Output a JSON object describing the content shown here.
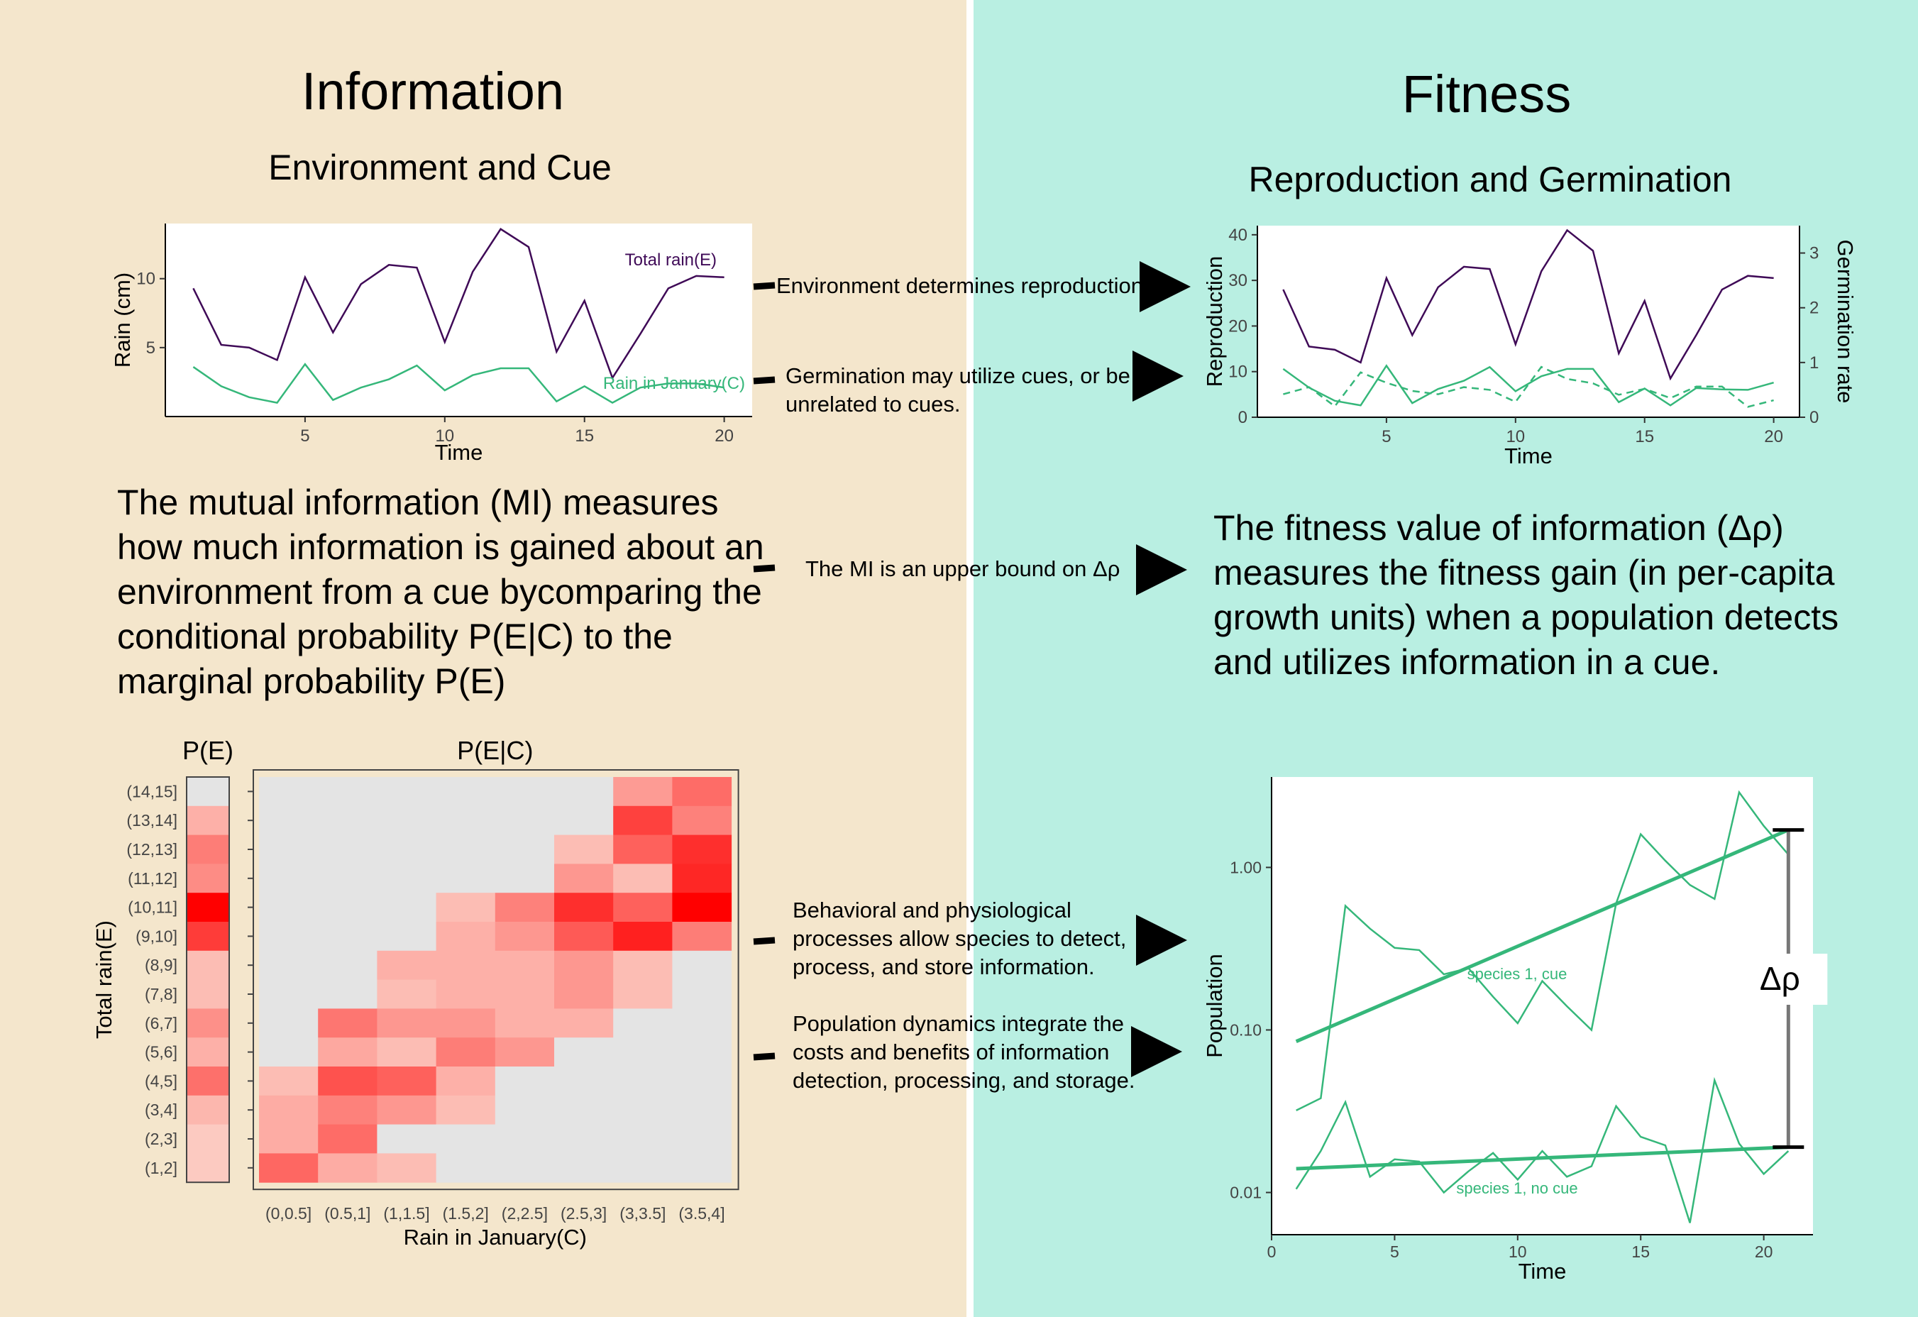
{
  "left_title": "Information",
  "left_subtitle": "Environment and Cue",
  "right_title": "Fitness",
  "right_subtitle": "Reproduction and Germination",
  "mi_text": "The mutual information (MI) measures how much information is gained about an environment from a cue bycomparing the conditional probability P(E|C) to the marginal probability P(E)",
  "fitness_text": "The fitness value of information (Δρ) measures the fitness gain (in per-capita growth units) when a population detects and utilizes information in a cue.",
  "arrows": {
    "a1": "Environment determines reproduction",
    "a2": "Germination may utilize cues, or be unrelated to cues.",
    "a3": "The MI is an upper bound on Δρ",
    "a4": "Behavioral and physiological processes allow species to detect, process, and store information.",
    "a5": "Population dynamics integrate the costs and benefits of information detection, processing, and storage."
  },
  "colors": {
    "left_bg": "#f4e6cc",
    "right_bg": "#b9efe2",
    "purple": "#3f0a57",
    "green": "#35b77a"
  },
  "chart_data": [
    {
      "type": "line",
      "id": "rain",
      "xlabel": "Time",
      "ylabel": "Rain (cm)",
      "xticks": [
        5,
        10,
        15,
        20
      ],
      "yticks": [
        5,
        10
      ],
      "xlim": [
        0,
        21
      ],
      "ylim": [
        0,
        14
      ],
      "x": [
        1,
        2,
        3,
        4,
        5,
        6,
        7,
        8,
        9,
        10,
        11,
        12,
        13,
        14,
        15,
        16,
        17,
        18,
        19,
        20
      ],
      "series": [
        {
          "name": "Total rain(E)",
          "color": "#3f0a57",
          "values": [
            9.3,
            5.2,
            5.0,
            4.1,
            10.1,
            6.1,
            9.6,
            11.0,
            10.8,
            5.4,
            10.5,
            13.6,
            12.3,
            4.7,
            8.4,
            2.8,
            6.0,
            9.3,
            10.2,
            10.1
          ]
        },
        {
          "name": "Rain in January(C)",
          "color": "#35b77a",
          "values": [
            3.6,
            2.2,
            1.4,
            1.0,
            3.8,
            1.2,
            2.1,
            2.7,
            3.7,
            1.9,
            3.0,
            3.5,
            3.5,
            1.1,
            2.2,
            1.0,
            2.1,
            2.4,
            2.4,
            2.1
          ]
        }
      ]
    },
    {
      "type": "line",
      "id": "repro",
      "xlabel": "Time",
      "ylabel": "Reproduction",
      "y2label": "Germination rate",
      "xticks": [
        5,
        10,
        15,
        20
      ],
      "yticks": [
        0,
        10,
        20,
        30,
        40
      ],
      "y2ticks": [
        0,
        1,
        2,
        3
      ],
      "xlim": [
        0,
        21
      ],
      "ylim": [
        0,
        42
      ],
      "y2lim": [
        0,
        3.5
      ],
      "x": [
        1,
        2,
        3,
        4,
        5,
        6,
        7,
        8,
        9,
        10,
        11,
        12,
        13,
        14,
        15,
        16,
        17,
        18,
        19,
        20
      ],
      "series": [
        {
          "name": "",
          "color": "#3f0a57",
          "style": "solid",
          "axis": "y",
          "values": [
            28,
            15.5,
            14.8,
            12,
            30.5,
            18,
            28.5,
            33,
            32.5,
            16,
            32,
            41,
            36.5,
            14,
            25.5,
            8.5,
            18,
            28,
            31,
            30.5
          ]
        },
        {
          "name": "",
          "color": "#35b77a",
          "style": "solid",
          "axis": "y",
          "values": [
            10.6,
            6.5,
            3.6,
            2.6,
            11.3,
            3.1,
            6.2,
            8.0,
            11.0,
            5.7,
            9.0,
            10.6,
            10.6,
            3.3,
            6.3,
            2.6,
            6.4,
            6.1,
            6.0,
            7.6
          ]
        },
        {
          "name": "",
          "color": "#35b77a",
          "style": "dashed",
          "axis": "y2",
          "values": [
            0.42,
            0.55,
            0.2,
            0.82,
            0.63,
            0.48,
            0.42,
            0.55,
            0.5,
            0.28,
            0.92,
            0.7,
            0.62,
            0.41,
            0.52,
            0.35,
            0.56,
            0.56,
            0.19,
            0.31
          ]
        }
      ]
    },
    {
      "type": "heatmap",
      "id": "pe",
      "title": "P(E)",
      "ylabel": "Total rain(E)",
      "rows": [
        "(14,15]",
        "(13,14]",
        "(12,13]",
        "(11,12]",
        "(10,11]",
        "(9,10]",
        "(8,9]",
        "(7,8]",
        "(6,7]",
        "(5,6]",
        "(4,5]",
        "(3,4]",
        "(2,3]",
        "(1,2]"
      ],
      "values": [
        0.0,
        0.18,
        0.42,
        0.35,
        1.0,
        0.72,
        0.12,
        0.12,
        0.33,
        0.18,
        0.48,
        0.15,
        0.06,
        0.06
      ]
    },
    {
      "type": "heatmap",
      "id": "pec",
      "title": "P(E|C)",
      "xlabel": "Rain in January(C)",
      "columns": [
        "(0,0.5]",
        "(0.5,1]",
        "(1,1.5]",
        "(1.5,2]",
        "(2,2.5]",
        "(2.5,3]",
        "(3,3.5]",
        "(3.5,4]"
      ],
      "rows": [
        "(14,15]",
        "(13,14]",
        "(12,13]",
        "(11,12]",
        "(10,11]",
        "(9,10]",
        "(8,9]",
        "(7,8]",
        "(6,7]",
        "(5,6]",
        "(4,5]",
        "(3,4]",
        "(2,3]",
        "(1,2]"
      ],
      "matrix": [
        [
          0,
          0,
          0,
          0,
          0,
          0,
          0.28,
          0.5
        ],
        [
          0,
          0,
          0,
          0,
          0,
          0,
          0.7,
          0.4
        ],
        [
          0,
          0,
          0,
          0,
          0,
          0.12,
          0.55,
          0.78
        ],
        [
          0,
          0,
          0,
          0,
          0,
          0.3,
          0.12,
          0.82
        ],
        [
          0,
          0,
          0,
          0.12,
          0.4,
          0.78,
          0.55,
          1.0
        ],
        [
          0,
          0,
          0,
          0.18,
          0.3,
          0.58,
          0.85,
          0.42
        ],
        [
          0,
          0,
          0.18,
          0.18,
          0.18,
          0.3,
          0.12,
          0
        ],
        [
          0,
          0,
          0.12,
          0.18,
          0.18,
          0.3,
          0.12,
          0
        ],
        [
          0,
          0.45,
          0.3,
          0.3,
          0.18,
          0.18,
          0,
          0
        ],
        [
          0,
          0.22,
          0.12,
          0.42,
          0.3,
          0,
          0,
          0
        ],
        [
          0.12,
          0.62,
          0.55,
          0.18,
          0,
          0,
          0,
          0
        ],
        [
          0.2,
          0.4,
          0.3,
          0.12,
          0,
          0,
          0,
          0
        ],
        [
          0.2,
          0.5,
          0,
          0,
          0,
          0,
          0,
          0
        ],
        [
          0.52,
          0.2,
          0.12,
          0,
          0,
          0,
          0,
          0
        ]
      ]
    },
    {
      "type": "line",
      "id": "pop",
      "xlabel": "Time",
      "ylabel": "Population",
      "yscale": "log",
      "xticks": [
        0,
        5,
        10,
        15,
        20
      ],
      "yticks": [
        0.01,
        0.1,
        1.0
      ],
      "ytick_labels": [
        "0.01",
        "0.10",
        "1.00"
      ],
      "xlim": [
        0,
        22
      ],
      "ylim": [
        0.0055,
        3.6
      ],
      "x": [
        1,
        2,
        3,
        4,
        5,
        6,
        7,
        8,
        9,
        10,
        11,
        12,
        13,
        14,
        15,
        16,
        17,
        18,
        19,
        20,
        21
      ],
      "series": [
        {
          "name": "species 1, cue",
          "color": "#35b77a",
          "values": [
            0.032,
            0.038,
            0.58,
            0.42,
            0.32,
            0.31,
            0.22,
            0.24,
            0.16,
            0.11,
            0.2,
            0.14,
            0.1,
            0.6,
            1.6,
            1.1,
            0.78,
            0.64,
            2.9,
            1.8,
            1.2
          ]
        },
        {
          "name": "species 1, no cue",
          "color": "#35b77a",
          "values": [
            0.0105,
            0.018,
            0.036,
            0.0125,
            0.016,
            0.0155,
            0.01,
            0.0135,
            0.0175,
            0.012,
            0.018,
            0.0125,
            0.0145,
            0.034,
            0.022,
            0.0195,
            0.0065,
            0.049,
            0.02,
            0.013,
            0.018
          ]
        },
        {
          "name": "",
          "color": "#35b77a",
          "style": "trend",
          "x": [
            1,
            21
          ],
          "values": [
            0.085,
            1.7
          ]
        },
        {
          "name": "",
          "color": "#35b77a",
          "style": "trend",
          "x": [
            1,
            21
          ],
          "values": [
            0.014,
            0.019
          ]
        }
      ],
      "annotation": "Δρ"
    }
  ]
}
